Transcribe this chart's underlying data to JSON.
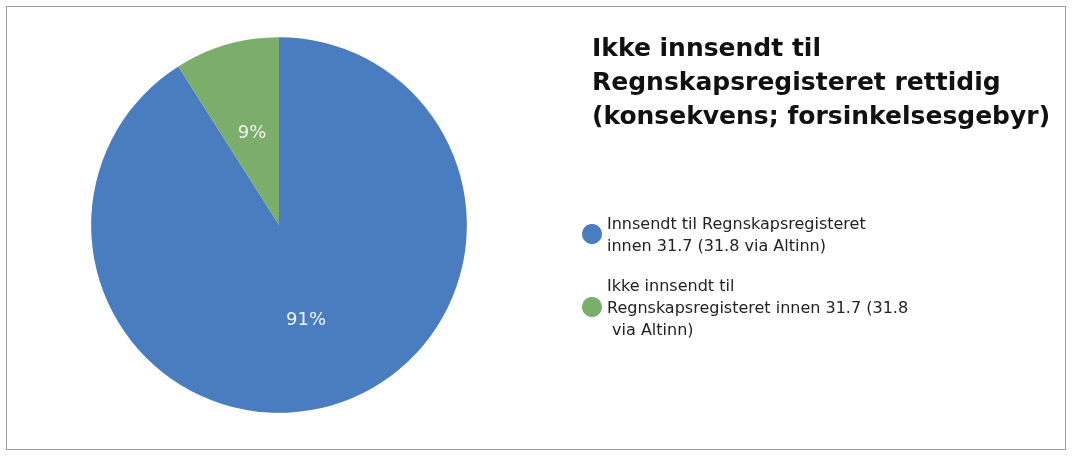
{
  "chart_data": {
    "type": "pie",
    "title": "Ikke innsendt til Regnskapsregisteret rettidig (konsekvens; forsinkelsesgebyr)",
    "categories": [
      "Innsendt til Regnskapsregisteret innen 31.7 (31.8 via Altinn)",
      "Ikke innsendt til Regnskapsregisteret innen 31.7 (31.8 via Altinn)"
    ],
    "values": [
      91,
      9
    ],
    "colors": [
      "#4a7cc0",
      "#7aae6a"
    ],
    "value_labels": [
      "91%",
      "9%"
    ],
    "legend": "right"
  }
}
